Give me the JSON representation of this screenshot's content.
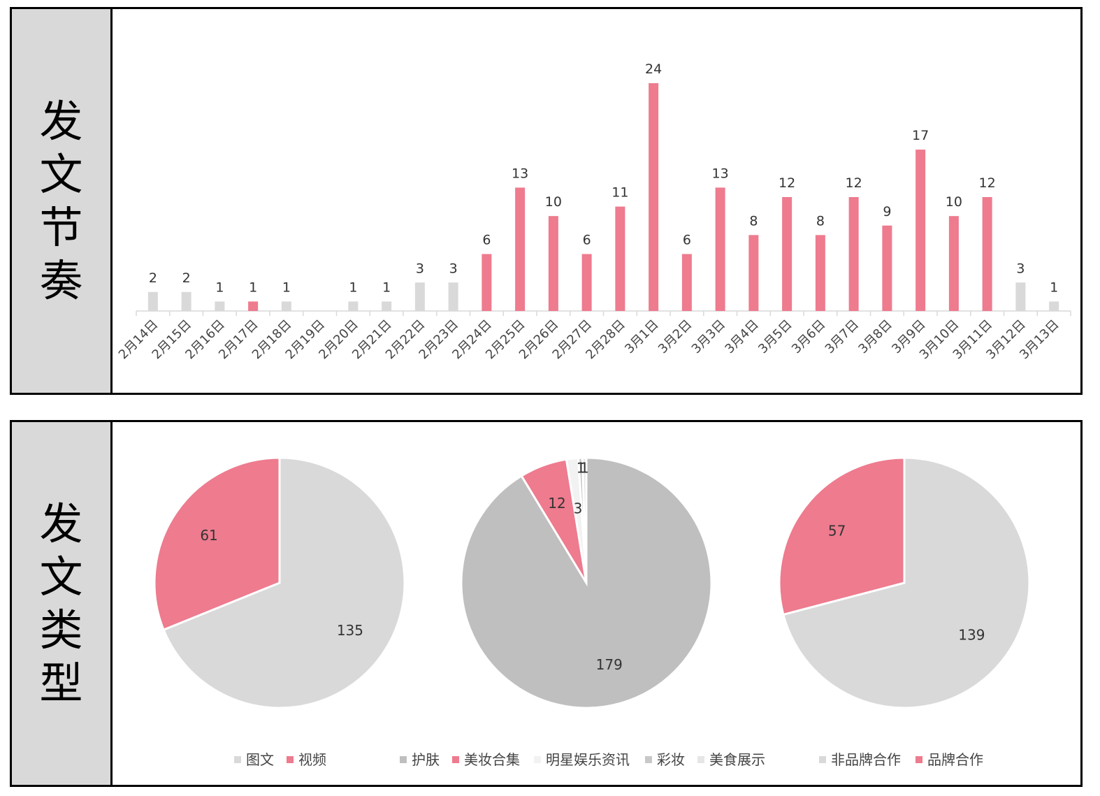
{
  "sections": {
    "rhythm_label": "发文节奏",
    "type_label": "发文类型"
  },
  "colors": {
    "pink": "#ee7b8e",
    "light_gray": "#d9d9d9",
    "mid_gray": "#bfbfbf",
    "pale_gray": "#f2f2f2"
  },
  "chart_data": [
    {
      "type": "bar",
      "categories": [
        "2月14日",
        "2月15日",
        "2月16日",
        "2月17日",
        "2月18日",
        "2月19日",
        "2月20日",
        "2月21日",
        "2月22日",
        "2月23日",
        "2月24日",
        "2月25日",
        "2月26日",
        "2月27日",
        "2月28日",
        "3月1日",
        "3月2日",
        "3月3日",
        "3月4日",
        "3月5日",
        "3月6日",
        "3月7日",
        "3月8日",
        "3月9日",
        "3月10日",
        "3月11日",
        "3月12日",
        "3月13日"
      ],
      "values": [
        2,
        2,
        1,
        1,
        1,
        0,
        1,
        1,
        3,
        3,
        6,
        13,
        10,
        6,
        11,
        24,
        6,
        13,
        8,
        12,
        8,
        12,
        9,
        17,
        10,
        12,
        3,
        1
      ],
      "value_labels": [
        "2",
        "2",
        "1",
        "1",
        "1",
        "",
        "1",
        "1",
        "3",
        "3",
        "6",
        "13",
        "10",
        "6",
        "11",
        "24",
        "6",
        "13",
        "8",
        "12",
        "8",
        "12",
        "9",
        "17",
        "10",
        "12",
        "3",
        "1"
      ],
      "bar_colors": [
        "#d9d9d9",
        "#d9d9d9",
        "#d9d9d9",
        "#ee7b8e",
        "#d9d9d9",
        "#d9d9d9",
        "#d9d9d9",
        "#d9d9d9",
        "#d9d9d9",
        "#d9d9d9",
        "#ee7b8e",
        "#ee7b8e",
        "#ee7b8e",
        "#ee7b8e",
        "#ee7b8e",
        "#ee7b8e",
        "#ee7b8e",
        "#ee7b8e",
        "#ee7b8e",
        "#ee7b8e",
        "#ee7b8e",
        "#ee7b8e",
        "#ee7b8e",
        "#ee7b8e",
        "#ee7b8e",
        "#ee7b8e",
        "#d9d9d9",
        "#d9d9d9"
      ],
      "ylim": [
        0,
        24
      ],
      "grid": false
    },
    {
      "type": "pie",
      "slices": [
        {
          "name": "图文",
          "value": 135,
          "color": "#d9d9d9"
        },
        {
          "name": "视频",
          "value": 61,
          "color": "#ee7b8e"
        }
      ],
      "legend_position": "bottom"
    },
    {
      "type": "pie",
      "slices": [
        {
          "name": "护肤",
          "value": 179,
          "color": "#bfbfbf"
        },
        {
          "name": "美妆合集",
          "value": 12,
          "color": "#ee7b8e"
        },
        {
          "name": "明星娱乐资讯",
          "value": 3,
          "color": "#f2f2f2"
        },
        {
          "name": "彩妆",
          "value": 1,
          "color": "#c8c8c8"
        },
        {
          "name": "美食展示",
          "value": 1,
          "color": "#e6e6e6"
        }
      ],
      "legend_position": "bottom"
    },
    {
      "type": "pie",
      "slices": [
        {
          "name": "非品牌合作",
          "value": 139,
          "color": "#d9d9d9"
        },
        {
          "name": "品牌合作",
          "value": 57,
          "color": "#ee7b8e"
        }
      ],
      "legend_position": "bottom"
    }
  ]
}
